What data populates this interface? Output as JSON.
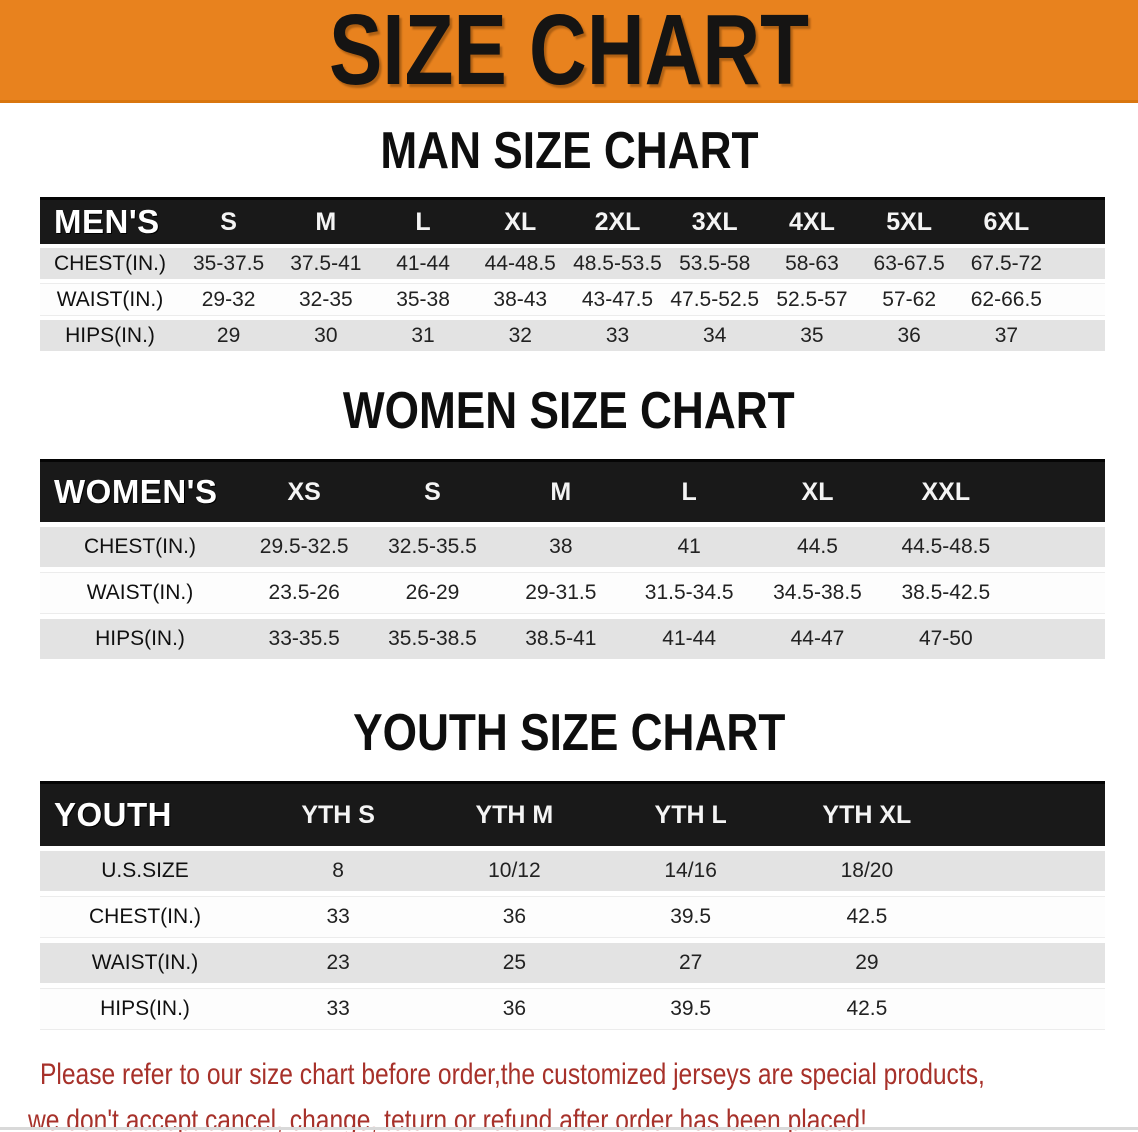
{
  "banner": {
    "title": "SIZE CHART",
    "bg_color": "#e8821e",
    "text_color": "#151413"
  },
  "men": {
    "heading": "MAN SIZE CHART",
    "label": "MEN'S",
    "columns": [
      "S",
      "M",
      "L",
      "XL",
      "2XL",
      "3XL",
      "4XL",
      "5XL",
      "6XL"
    ],
    "rows": [
      {
        "label": "CHEST(IN.)",
        "values": [
          "35-37.5",
          "37.5-41",
          "41-44",
          "44-48.5",
          "48.5-53.5",
          "53.5-58",
          "58-63",
          "63-67.5",
          "67.5-72"
        ]
      },
      {
        "label": "WAIST(IN.)",
        "values": [
          "29-32",
          "32-35",
          "35-38",
          "38-43",
          "43-47.5",
          "47.5-52.5",
          "52.5-57",
          "57-62",
          "62-66.5"
        ]
      },
      {
        "label": "HIPS(IN.)",
        "values": [
          "29",
          "30",
          "31",
          "32",
          "33",
          "34",
          "35",
          "36",
          "37"
        ]
      }
    ]
  },
  "women": {
    "heading": "WOMEN SIZE CHART",
    "label": "WOMEN'S",
    "columns": [
      "XS",
      "S",
      "M",
      "L",
      "XL",
      "XXL"
    ],
    "rows": [
      {
        "label": "CHEST(IN.)",
        "values": [
          "29.5-32.5",
          "32.5-35.5",
          "38",
          "41",
          "44.5",
          "44.5-48.5"
        ]
      },
      {
        "label": "WAIST(IN.)",
        "values": [
          "23.5-26",
          "26-29",
          "29-31.5",
          "31.5-34.5",
          "34.5-38.5",
          "38.5-42.5"
        ]
      },
      {
        "label": "HIPS(IN.)",
        "values": [
          "33-35.5",
          "35.5-38.5",
          "38.5-41",
          "41-44",
          "44-47",
          "47-50"
        ]
      }
    ]
  },
  "youth": {
    "heading": "YOUTH SIZE CHART",
    "label": "YOUTH",
    "columns": [
      "YTH S",
      "YTH M",
      "YTH L",
      "YTH XL"
    ],
    "rows": [
      {
        "label": "U.S.SIZE",
        "values": [
          "8",
          "10/12",
          "14/16",
          "18/20"
        ]
      },
      {
        "label": "CHEST(IN.)",
        "values": [
          "33",
          "36",
          "39.5",
          "42.5"
        ]
      },
      {
        "label": "WAIST(IN.)",
        "values": [
          "23",
          "25",
          "27",
          "29"
        ]
      },
      {
        "label": "HIPS(IN.)",
        "values": [
          "33",
          "36",
          "39.5",
          "42.5"
        ]
      }
    ]
  },
  "footer": {
    "line1": "Please refer to our size chart before order,the customized jerseys are special products,",
    "line2": "we don't accept cancel, change, teturn or refund after order has been placed!",
    "text_color": "#a7312a"
  }
}
